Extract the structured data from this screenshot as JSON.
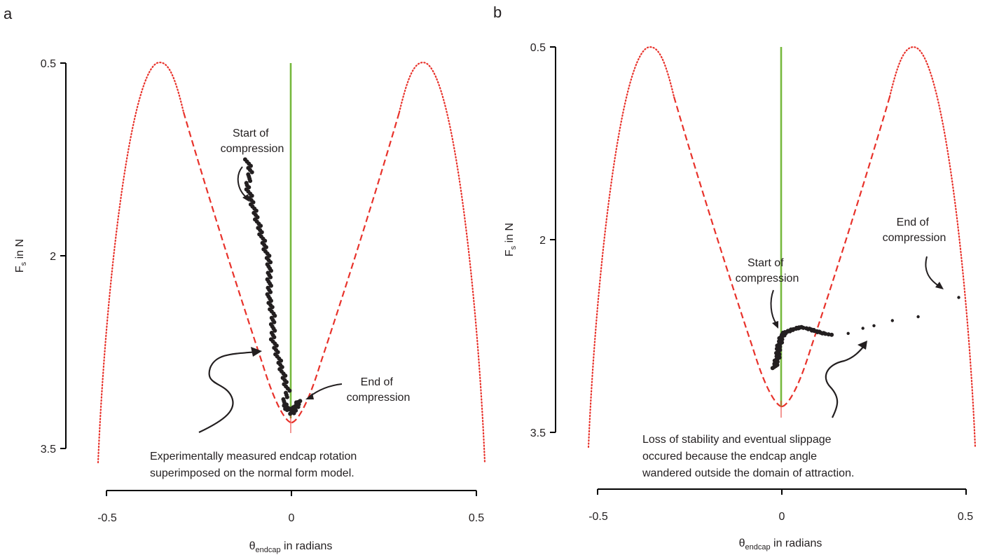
{
  "chart_data": [
    {
      "panel": "a",
      "type": "scatter",
      "xlabel_main": "θ",
      "xlabel_sub": "endcap",
      "xlabel_rest": " in radians",
      "ylabel_main": "F",
      "ylabel_sub": "s",
      "ylabel_rest": " in N",
      "xticks": [
        "-0.5",
        "0",
        "0.5"
      ],
      "xtick_values": [
        -0.5,
        0,
        0.5
      ],
      "yticks": [
        "0.5",
        "2",
        "3.5"
      ],
      "ytick_values": [
        0.5,
        2,
        3.5
      ],
      "xlim": [
        -0.5,
        0.5
      ],
      "ylim": [
        0.5,
        3.5
      ],
      "y_inverted": true,
      "annotations": {
        "start_line1": "Start of",
        "start_line2": "compression",
        "end_line1": "End of",
        "end_line2": "compression",
        "caption_line1": "Experimentally measured endcap rotation",
        "caption_line2": "superimposed on the normal form model."
      },
      "trajectory": [
        [
          -0.12,
          1.25
        ],
        [
          -0.11,
          1.35
        ],
        [
          -0.12,
          1.45
        ],
        [
          -0.11,
          1.55
        ],
        [
          -0.1,
          1.65
        ],
        [
          -0.09,
          1.75
        ],
        [
          -0.08,
          1.85
        ],
        [
          -0.07,
          1.95
        ],
        [
          -0.06,
          2.05
        ],
        [
          -0.06,
          2.15
        ],
        [
          -0.06,
          2.25
        ],
        [
          -0.06,
          2.35
        ],
        [
          -0.05,
          2.45
        ],
        [
          -0.05,
          2.55
        ],
        [
          -0.05,
          2.65
        ],
        [
          -0.04,
          2.75
        ],
        [
          -0.03,
          2.85
        ],
        [
          -0.02,
          2.95
        ],
        [
          -0.01,
          3.05
        ],
        [
          -0.02,
          3.15
        ],
        [
          -0.01,
          3.2
        ],
        [
          0.01,
          3.18
        ],
        [
          0.02,
          3.13
        ],
        [
          0.01,
          3.2
        ],
        [
          0.0,
          3.23
        ]
      ]
    },
    {
      "panel": "b",
      "type": "scatter",
      "xlabel_main": "θ",
      "xlabel_sub": "endcap",
      "xlabel_rest": " in radians",
      "ylabel_main": "F",
      "ylabel_sub": "s",
      "ylabel_rest": " in N",
      "xticks": [
        "-0.5",
        "0",
        "0.5"
      ],
      "xtick_values": [
        -0.5,
        0,
        0.5
      ],
      "yticks": [
        "0.5",
        "2",
        "3.5"
      ],
      "ytick_values": [
        0.5,
        2,
        3.5
      ],
      "xlim": [
        -0.5,
        0.5
      ],
      "ylim": [
        0.5,
        3.5
      ],
      "y_inverted": true,
      "annotations": {
        "start_line1": "Start of",
        "start_line2": "compression",
        "end_line1": "End of",
        "end_line2": "compression",
        "caption_line1": "Loss of stability and eventual slippage",
        "caption_line2": "occured because the endcap angle",
        "caption_line3": "wandered outside the domain of attraction."
      },
      "trajectory": [
        [
          -0.02,
          3.0
        ],
        [
          -0.015,
          2.95
        ],
        [
          -0.01,
          2.9
        ],
        [
          -0.01,
          2.85
        ],
        [
          -0.005,
          2.8
        ],
        [
          0.0,
          2.75
        ],
        [
          0.01,
          2.72
        ],
        [
          0.03,
          2.7
        ],
        [
          0.05,
          2.68
        ],
        [
          0.08,
          2.7
        ],
        [
          0.1,
          2.72
        ],
        [
          0.13,
          2.74
        ]
      ],
      "slip_points": [
        [
          0.18,
          2.73
        ],
        [
          0.22,
          2.69
        ],
        [
          0.25,
          2.67
        ],
        [
          0.3,
          2.63
        ],
        [
          0.37,
          2.6
        ],
        [
          0.48,
          2.45
        ]
      ]
    }
  ]
}
